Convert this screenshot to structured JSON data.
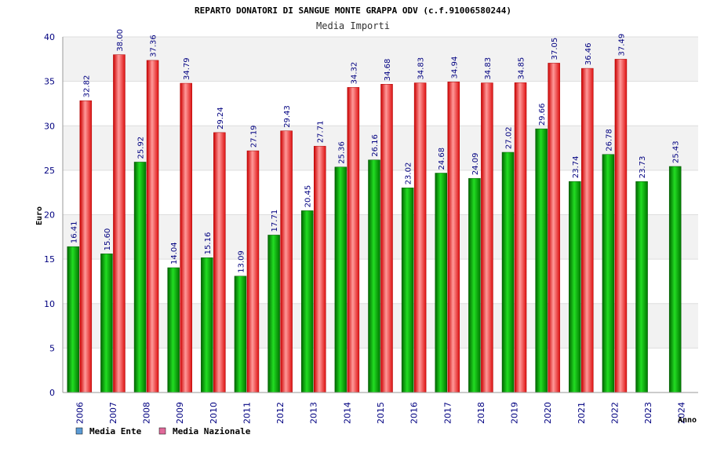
{
  "chart_data": {
    "type": "bar",
    "title": "REPARTO DONATORI DI SANGUE MONTE GRAPPA ODV (c.f.91006580244)",
    "subtitle": "Media Importi",
    "xlabel": "Anno",
    "ylabel": "Euro",
    "ylim": [
      0,
      40
    ],
    "yticks": [
      0,
      5,
      10,
      15,
      20,
      25,
      30,
      35,
      40
    ],
    "grid": true,
    "legend_position": "bottom-left",
    "categories": [
      "2006",
      "2007",
      "2008",
      "2009",
      "2010",
      "2011",
      "2012",
      "2013",
      "2014",
      "2015",
      "2016",
      "2017",
      "2018",
      "2019",
      "2020",
      "2021",
      "2022",
      "2023",
      "2024"
    ],
    "series": [
      {
        "name": "Media Ente",
        "legend_color": "#5b9bd5",
        "bar_color": "#00aa00",
        "values": [
          16.41,
          15.6,
          25.92,
          14.04,
          15.16,
          13.09,
          17.71,
          20.45,
          25.36,
          26.16,
          23.02,
          24.68,
          24.09,
          27.02,
          29.66,
          23.74,
          26.78,
          23.73,
          25.43
        ],
        "labels": [
          "16.41",
          "15.60",
          "25.92",
          "14.04",
          "15.16",
          "13.09",
          "17.71",
          "20.45",
          "25.36",
          "26.16",
          "23.02",
          "24.68",
          "24.09",
          "27.02",
          "29.66",
          "23.74",
          "26.78",
          "23.73",
          "25.43"
        ]
      },
      {
        "name": "Media Nazionale",
        "legend_color": "#e06a9a",
        "bar_color": "#ee2222",
        "values": [
          32.82,
          38.0,
          37.36,
          34.79,
          29.24,
          27.19,
          29.43,
          27.71,
          34.32,
          34.68,
          34.83,
          34.94,
          34.83,
          34.85,
          37.05,
          36.46,
          37.49,
          null,
          null
        ],
        "labels": [
          "32.82",
          "38.00",
          "37.36",
          "34.79",
          "29.24",
          "27.19",
          "29.43",
          "27.71",
          "34.32",
          "34.68",
          "34.83",
          "34.94",
          "34.83",
          "34.85",
          "37.05",
          "36.46",
          "37.49",
          null,
          null
        ]
      }
    ]
  }
}
